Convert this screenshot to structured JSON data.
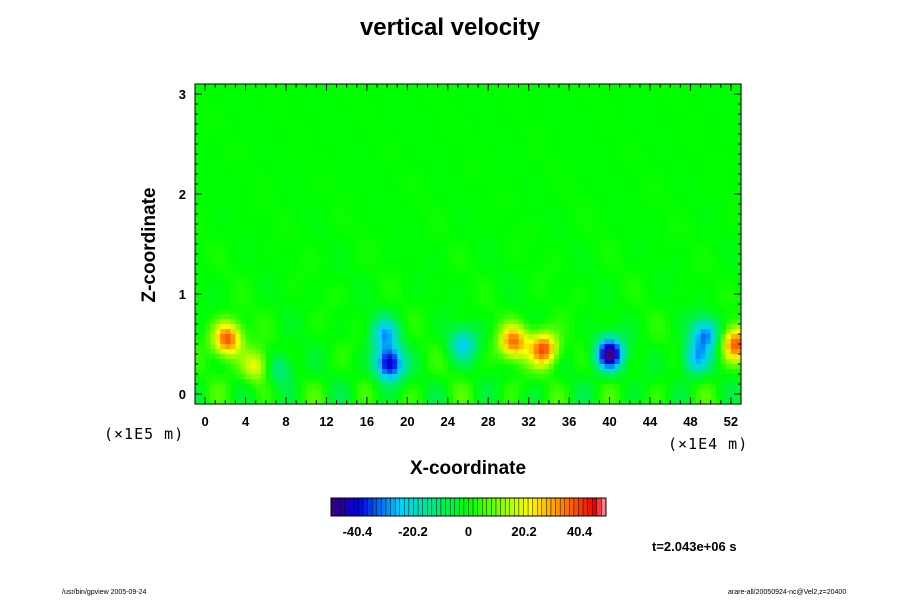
{
  "chart_data": {
    "type": "heatmap",
    "title": "vertical velocity",
    "xlabel": "X-coordinate",
    "ylabel": "Z-coordinate",
    "x_unit_label": "(×1E4 m)",
    "y_unit_label": "(×1E5 m)",
    "xlim": [
      -1,
      53
    ],
    "ylim": [
      -0.1,
      3.1
    ],
    "x_ticks": [
      0,
      4,
      8,
      12,
      16,
      20,
      24,
      28,
      32,
      36,
      40,
      44,
      48,
      52
    ],
    "x_tick_labels": [
      "0",
      "4",
      "8",
      "12",
      "16",
      "20",
      "24",
      "28",
      "32",
      "36",
      "40",
      "44",
      "48",
      "52"
    ],
    "y_ticks": [
      0,
      1,
      2,
      3
    ],
    "y_tick_labels": [
      "0",
      "1",
      "2",
      "3"
    ],
    "colorbar": {
      "range": [
        -50,
        50
      ],
      "ticks": [
        -40.4,
        -20.2,
        0,
        20.2,
        40.4
      ],
      "tick_labels": [
        "-40.4",
        "-20.2",
        "0",
        "20.2",
        "40.4"
      ]
    },
    "features": [
      {
        "x": 2.2,
        "z": 0.55,
        "value": 40
      },
      {
        "x": 5.0,
        "z": 0.28,
        "value": 22
      },
      {
        "x": 18.2,
        "z": 0.3,
        "value": -45
      },
      {
        "x": 17.8,
        "z": 0.6,
        "value": -25
      },
      {
        "x": 25.5,
        "z": 0.5,
        "value": -22
      },
      {
        "x": 30.5,
        "z": 0.52,
        "value": 35
      },
      {
        "x": 33.5,
        "z": 0.45,
        "value": 40
      },
      {
        "x": 40.0,
        "z": 0.4,
        "value": -50
      },
      {
        "x": 49.5,
        "z": 0.6,
        "value": -30
      },
      {
        "x": 48.5,
        "z": 0.35,
        "value": -25
      },
      {
        "x": 52.5,
        "z": 0.5,
        "value": 38
      },
      {
        "x": 7.5,
        "z": 0.25,
        "value": -15
      }
    ],
    "time_label": "t=2.043e+06 s"
  },
  "footer": {
    "left": "/usr/bin/gpview 2005-09-24",
    "right": "arare-all/20050924-nc@Vel2,z=20400"
  }
}
